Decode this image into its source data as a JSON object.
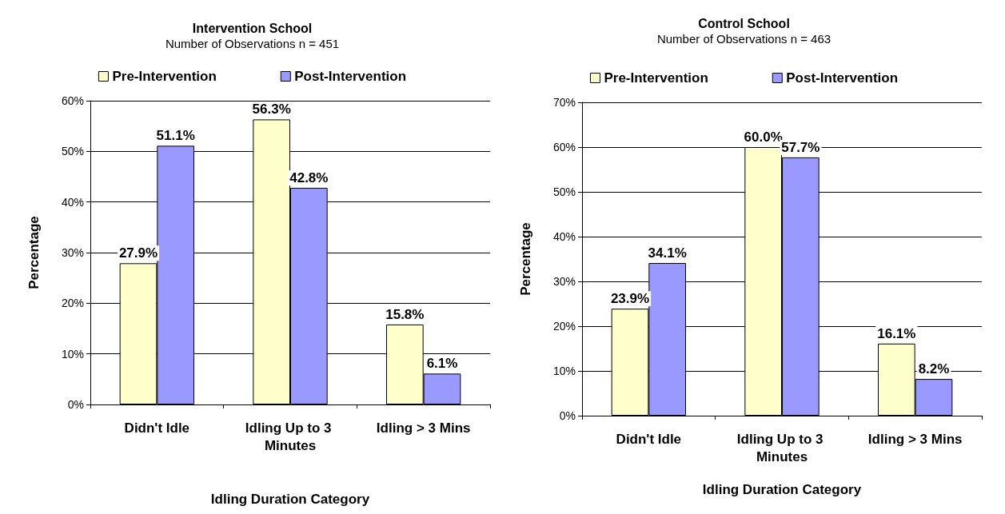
{
  "chart_data": [
    {
      "type": "bar",
      "title": "Intervention School",
      "subtitle": "Number of Observations n = 451",
      "xlabel": "Idling Duration Category",
      "ylabel": "Percentage",
      "categories": [
        "Didn't Idle",
        "Idling Up to 3 Minutes",
        "Idling > 3 Mins"
      ],
      "series": [
        {
          "name": "Pre-Intervention",
          "color": "#ffffcc",
          "values": [
            27.9,
            56.3,
            15.8
          ],
          "value_labels": [
            "27.9%",
            "56.3%",
            "15.8%"
          ]
        },
        {
          "name": "Post-Intervention",
          "color": "#9999ff",
          "values": [
            51.1,
            42.8,
            6.1
          ],
          "value_labels": [
            "51.1%",
            "42.8%",
            "6.1%"
          ]
        }
      ],
      "ylim": [
        0,
        60
      ],
      "yticks": [
        {
          "value": 0,
          "label": "0%"
        },
        {
          "value": 10,
          "label": "10%"
        },
        {
          "value": 20,
          "label": "20%"
        },
        {
          "value": 30,
          "label": "30%"
        },
        {
          "value": 40,
          "label": "40%"
        },
        {
          "value": 50,
          "label": "50%"
        },
        {
          "value": 60,
          "label": "60%"
        }
      ],
      "grid": "y",
      "legend": "top"
    },
    {
      "type": "bar",
      "title": "Control School",
      "subtitle": "Number of Observations n = 463",
      "xlabel": "Idling Duration Category",
      "ylabel": "Percentage",
      "categories": [
        "Didn't Idle",
        "Idling Up to 3 Minutes",
        "Idling > 3 Mins"
      ],
      "series": [
        {
          "name": "Pre-Intervention",
          "color": "#ffffcc",
          "values": [
            23.9,
            60.0,
            16.1
          ],
          "value_labels": [
            "23.9%",
            "60.0%",
            "16.1%"
          ]
        },
        {
          "name": "Post-Intervention",
          "color": "#9999ff",
          "values": [
            34.1,
            57.7,
            8.2
          ],
          "value_labels": [
            "34.1%",
            "57.7%",
            "8.2%"
          ]
        }
      ],
      "ylim": [
        0,
        70
      ],
      "yticks": [
        {
          "value": 0,
          "label": "0%"
        },
        {
          "value": 10,
          "label": "10%"
        },
        {
          "value": 20,
          "label": "20%"
        },
        {
          "value": 30,
          "label": "30%"
        },
        {
          "value": 40,
          "label": "40%"
        },
        {
          "value": 50,
          "label": "50%"
        },
        {
          "value": 60,
          "label": "60%"
        },
        {
          "value": 70,
          "label": "70%"
        }
      ],
      "grid": "y",
      "legend": "top"
    }
  ]
}
